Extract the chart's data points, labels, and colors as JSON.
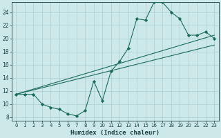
{
  "xlabel": "Humidex (Indice chaleur)",
  "bg_color": "#cce8e8",
  "line_color": "#1a6b5a",
  "xlim": [
    -0.5,
    23.5
  ],
  "ylim": [
    7.5,
    25.5
  ],
  "xticks": [
    0,
    1,
    2,
    3,
    4,
    5,
    6,
    7,
    8,
    9,
    10,
    11,
    12,
    13,
    14,
    15,
    16,
    17,
    18,
    19,
    20,
    21,
    22,
    23
  ],
  "yticks": [
    8,
    10,
    12,
    14,
    16,
    18,
    20,
    22,
    24
  ],
  "curve1_x": [
    0,
    1,
    2,
    3,
    4,
    5,
    6,
    7,
    8,
    9,
    10,
    11,
    12,
    13,
    14,
    15,
    16,
    17,
    18,
    19,
    20,
    21,
    22,
    23
  ],
  "curve1_y": [
    11.5,
    11.5,
    11.5,
    10.0,
    9.5,
    9.2,
    8.5,
    8.2,
    9.0,
    13.5,
    10.5,
    15.0,
    16.5,
    18.5,
    23.0,
    22.8,
    25.5,
    25.5,
    24.0,
    23.0,
    20.5,
    20.5,
    21.0,
    20.0
  ],
  "trend1_x": [
    0,
    23
  ],
  "trend1_y": [
    11.5,
    20.5
  ],
  "trend2_x": [
    0,
    23
  ],
  "trend2_y": [
    11.5,
    19.0
  ],
  "grid_color": "#aacfcf",
  "font_color": "#1a4040",
  "tick_fontsize": 5.0,
  "xlabel_fontsize": 6.5
}
